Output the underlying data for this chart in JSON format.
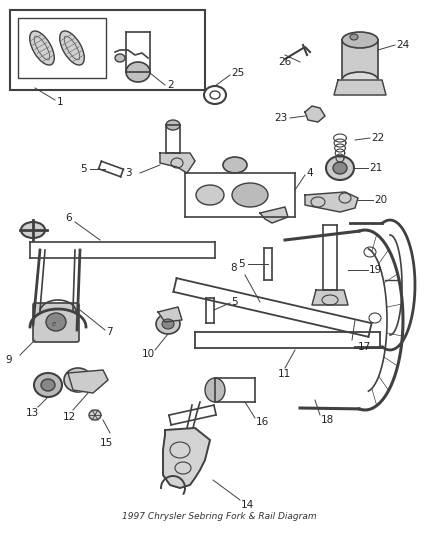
{
  "title": "1997 Chrysler Sebring Fork & Rail Diagram",
  "bg": "#ffffff",
  "lc": "#404040",
  "fig_w": 4.38,
  "fig_h": 5.33,
  "dpi": 100,
  "label_fs": 7.5,
  "title_fs": 6.5
}
